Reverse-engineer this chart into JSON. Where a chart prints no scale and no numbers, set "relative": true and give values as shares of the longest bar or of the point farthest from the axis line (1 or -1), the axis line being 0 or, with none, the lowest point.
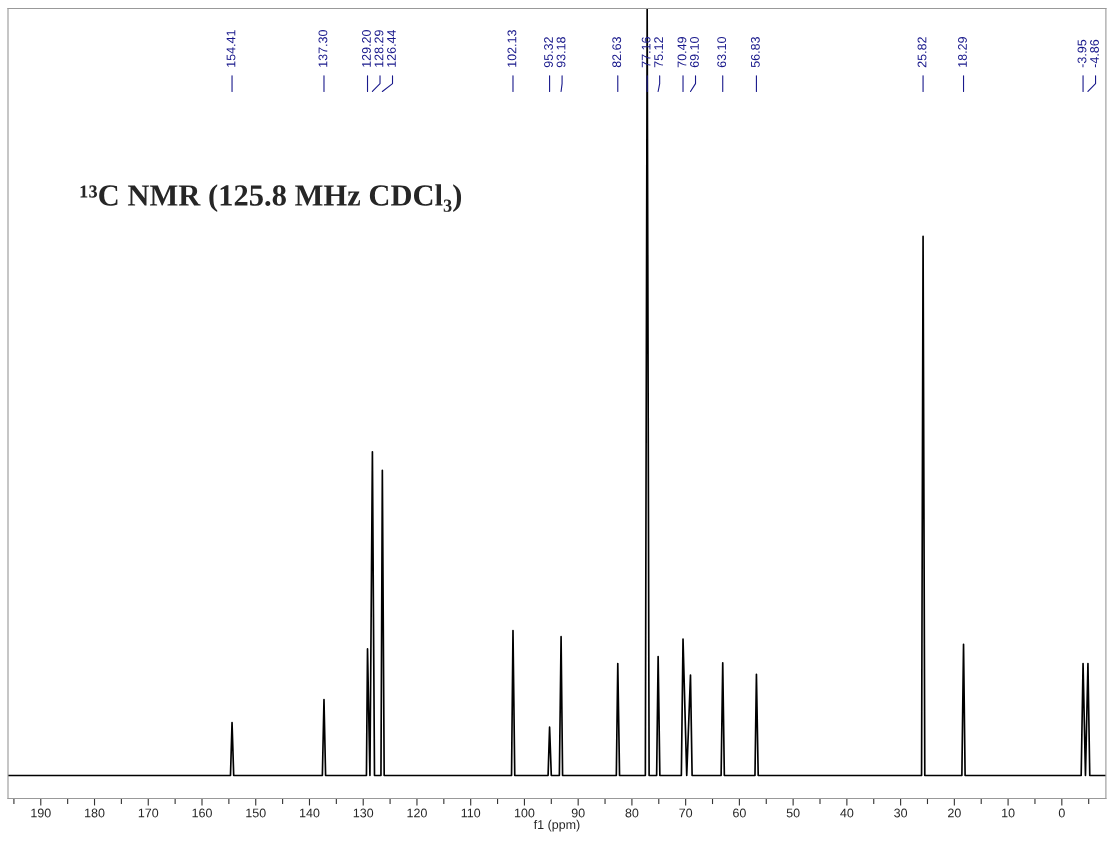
{
  "chart_data": {
    "type": "line",
    "relative": true,
    "xlabel": "f1 (ppm)",
    "xlim": [
      196.1,
      -8.2
    ],
    "xticks": [
      190,
      180,
      170,
      160,
      150,
      140,
      130,
      120,
      110,
      100,
      90,
      80,
      70,
      60,
      50,
      40,
      30,
      20,
      10,
      0
    ],
    "series": [
      {
        "color": "#000000",
        "x": [
          196.1,
          154.7,
          154.41,
          154.1,
          137.6,
          137.3,
          137.0,
          129.4,
          129.2,
          128.75,
          128.29,
          127.9,
          126.7,
          126.44,
          126.1,
          102.4,
          102.13,
          101.8,
          95.6,
          95.32,
          95.0,
          93.5,
          93.18,
          92.9,
          82.9,
          82.63,
          82.3,
          77.5,
          77.16,
          76.8,
          75.4,
          75.12,
          74.8,
          70.8,
          70.49,
          69.8,
          69.1,
          68.8,
          63.4,
          63.1,
          62.8,
          57.1,
          56.83,
          56.5,
          26.1,
          25.82,
          25.5,
          18.6,
          18.29,
          18.0,
          -3.6,
          -3.95,
          -4.4,
          -4.86,
          -5.2,
          -8.2
        ],
        "values": [
          0,
          0,
          0.069,
          0,
          0,
          0.099,
          0,
          0,
          0.165,
          0,
          0.422,
          0,
          0,
          0.398,
          0,
          0,
          0.189,
          0,
          0,
          0.063,
          0,
          0,
          0.181,
          0,
          0,
          0.146,
          0,
          0,
          1,
          0,
          0,
          0.155,
          0,
          0,
          0.178,
          0,
          0.131,
          0,
          0,
          0.147,
          0,
          0,
          0.132,
          0,
          0,
          0.703,
          0,
          0,
          0.171,
          0,
          0,
          0.146,
          0,
          0.146,
          0,
          0
        ]
      }
    ],
    "annotations": [
      "¹³C NMR (125.8 MHz CDCl₃)",
      {
        "text": "154.41",
        "x": 154.41
      },
      {
        "text": "137.30",
        "x": 137.3
      },
      {
        "text": "129.20",
        "x": 129.2
      },
      {
        "text": "128.29",
        "x": 128.29
      },
      {
        "text": "126.44",
        "x": 126.44
      },
      {
        "text": "102.13",
        "x": 102.13
      },
      {
        "text": "95.32",
        "x": 95.32
      },
      {
        "text": "93.18",
        "x": 93.18
      },
      {
        "text": "82.63",
        "x": 82.63
      },
      {
        "text": "77.16",
        "x": 77.16
      },
      {
        "text": "75.12",
        "x": 75.12
      },
      {
        "text": "70.49",
        "x": 70.49
      },
      {
        "text": "69.10",
        "x": 69.1
      },
      {
        "text": "63.10",
        "x": 63.1
      },
      {
        "text": "56.83",
        "x": 56.83
      },
      {
        "text": "25.82",
        "x": 25.82
      },
      {
        "text": "18.29",
        "x": 18.29
      },
      {
        "text": "-3.95",
        "x": -3.95
      },
      {
        "text": "-4.86",
        "x": -4.86
      }
    ]
  }
}
